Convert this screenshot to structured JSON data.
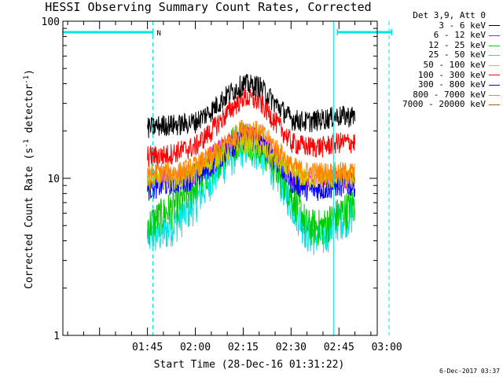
{
  "chart_data": {
    "type": "line",
    "title": "HESSI Observing Summary Count Rates, Corrected",
    "xlabel": "Start Time (28-Dec-16 01:31:22)",
    "ylabel_parts": [
      "Corrected Count Rate (s",
      "-1",
      " detector",
      "-1",
      ")"
    ],
    "yscale": "log",
    "ylim": [
      1,
      100
    ],
    "xlim_minutes": [
      -26.5,
      72
    ],
    "y_ticks": [
      {
        "label": "1",
        "value": 1
      },
      {
        "label": "10",
        "value": 10
      },
      {
        "label": "100",
        "value": 100
      }
    ],
    "x_ticks": [
      {
        "label": "01:45",
        "value": 0
      },
      {
        "label": "02:00",
        "value": 15
      },
      {
        "label": "02:15",
        "value": 30
      },
      {
        "label": "02:30",
        "value": 45
      },
      {
        "label": "02:45",
        "value": 60
      },
      {
        "label": "03:00",
        "value": 75
      }
    ],
    "grid": false,
    "legend_position": "right",
    "legend_title": "Det 3,9, Att 0",
    "orbit_markers": {
      "color": "#00e5e5",
      "night_label": "N",
      "bars": [
        [
          -26.5,
          1.7
        ],
        [
          59.5,
          76.5
        ]
      ],
      "solid_lines": [
        -26.5,
        58.3
      ],
      "dashed_lines": [
        1.7,
        75.7
      ]
    },
    "data_span_minutes": [
      0,
      65
    ],
    "series": [
      {
        "name": "3 - 6 keV",
        "color": "#000000",
        "x": [
          0,
          5,
          10,
          15,
          20,
          25,
          30,
          35,
          40,
          45,
          50,
          55,
          60,
          65
        ],
        "y": [
          21,
          22,
          22,
          23,
          27,
          34,
          40,
          39,
          30,
          24,
          23,
          24,
          25,
          25
        ]
      },
      {
        "name": "6 - 12 keV",
        "color": "#e000e0",
        "x": [
          0,
          5,
          10,
          15,
          20,
          25,
          30,
          35,
          40,
          45,
          50,
          55,
          60,
          65
        ],
        "y": [
          10,
          10,
          10,
          11,
          14,
          17,
          19,
          18,
          14,
          10,
          9.5,
          9.5,
          10,
          10
        ]
      },
      {
        "name": "12 - 25 keV",
        "color": "#00cc00",
        "x": [
          0,
          5,
          10,
          15,
          20,
          25,
          30,
          35,
          40,
          45,
          50,
          55,
          60,
          65
        ],
        "y": [
          5,
          6,
          7,
          9,
          12,
          16,
          19,
          17,
          12,
          8,
          5,
          5,
          6,
          7
        ]
      },
      {
        "name": "25 - 50 keV",
        "color": "#00e5e5",
        "x": [
          0,
          5,
          10,
          15,
          20,
          25,
          30,
          35,
          40,
          45,
          50,
          55,
          60,
          65
        ],
        "y": [
          4.3,
          4.5,
          5.5,
          7,
          10,
          13,
          16,
          15,
          11,
          7,
          4.5,
          4.2,
          5.5,
          6
        ]
      },
      {
        "name": "50 - 100 keV",
        "color": "#cccc00",
        "x": [
          0,
          5,
          10,
          15,
          20,
          25,
          30,
          35,
          40,
          45,
          50,
          55,
          60,
          65
        ],
        "y": [
          10,
          10,
          10,
          11,
          13,
          15,
          17,
          16,
          13,
          11,
          10,
          10,
          10,
          10
        ]
      },
      {
        "name": "100 - 300 keV",
        "color": "#ff0000",
        "x": [
          0,
          5,
          10,
          15,
          20,
          25,
          30,
          35,
          40,
          45,
          50,
          55,
          60,
          65
        ],
        "y": [
          14,
          14,
          15,
          16,
          20,
          26,
          33,
          31,
          23,
          17,
          16,
          16,
          17,
          17
        ]
      },
      {
        "name": "300 - 800 keV",
        "color": "#0000ff",
        "x": [
          0,
          5,
          10,
          15,
          20,
          25,
          30,
          35,
          40,
          45,
          50,
          55,
          60,
          65
        ],
        "y": [
          8.5,
          9,
          9.5,
          10,
          12,
          15,
          18,
          17,
          13,
          9.5,
          8.5,
          8.5,
          9,
          9
        ]
      },
      {
        "name": "800 - 7000 keV",
        "color": "#ff8800",
        "x": [
          0,
          5,
          10,
          15,
          20,
          25,
          30,
          35,
          40,
          45,
          50,
          55,
          60,
          65
        ],
        "y": [
          11,
          11,
          11,
          12,
          14,
          17,
          21,
          20,
          16,
          12,
          11,
          11,
          11,
          11
        ]
      },
      {
        "name": "7000 - 20000 keV",
        "color": "#996600",
        "x": [
          0,
          65
        ],
        "y": [
          null,
          null
        ]
      }
    ],
    "footer": "6-Dec-2017 03:37"
  }
}
